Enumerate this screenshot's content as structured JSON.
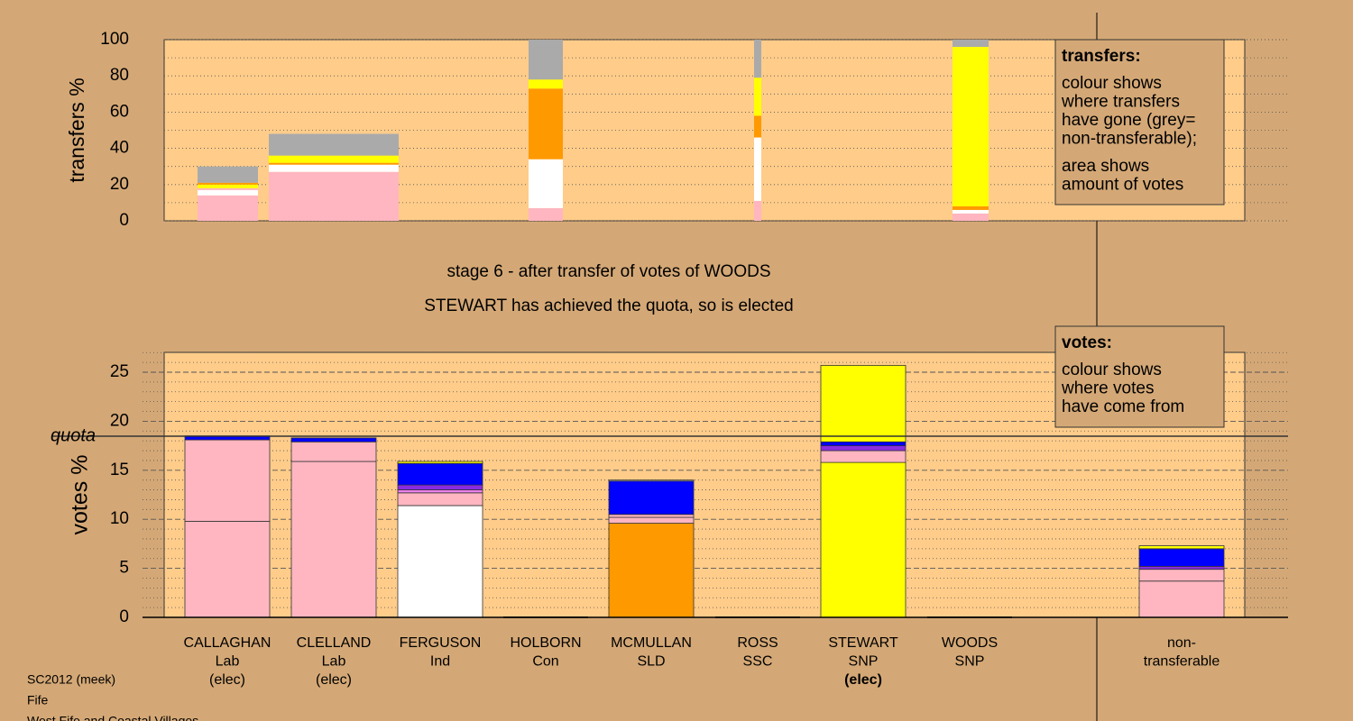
{
  "title": "stage 6 - after transfer of votes of WOODS",
  "subtitle": "STEWART has achieved the quota, so is elected",
  "footer": [
    "SC2012 (meek)",
    "Fife",
    "West Fife and Coastal Villages"
  ],
  "chart_data": [
    {
      "type": "stacked_bar",
      "ylabel": "transfers %",
      "ylim": [
        0,
        100
      ],
      "yticks": [
        0,
        20,
        40,
        60,
        80,
        100
      ],
      "minor_yticks": [
        10,
        30,
        50,
        70,
        90
      ],
      "grid": true,
      "legend": {
        "title": "transfers:",
        "lines": [
          [
            "colour shows",
            "where transfers",
            "have gone (grey=",
            "non-transferable);"
          ],
          [
            "area shows",
            "amount of votes"
          ]
        ]
      },
      "bars": [
        {
          "colors": [
            "#ffb6c1",
            "#ffffff",
            "#ffb6c1",
            "#ffff00",
            "#ff9900",
            "#aaaaaa"
          ],
          "values": [
            14,
            3,
            1,
            2,
            1,
            9
          ]
        },
        {
          "colors": [
            "#ffb6c1",
            "#ffffff",
            "#ff9900",
            "#ffff00",
            "#aaaaaa"
          ],
          "values": [
            27,
            4,
            1,
            4,
            12
          ]
        },
        {
          "colors": [
            "#ffb6c1",
            "#ffffff",
            "#ff9900",
            "#ffff00",
            "#aaaaaa"
          ],
          "values": [
            7,
            27,
            39,
            5,
            22
          ]
        },
        {
          "colors": [
            "#ffb6c1",
            "#ffffff",
            "#ff9900",
            "#ffff00",
            "#aaaaaa"
          ],
          "values": [
            11,
            35,
            12,
            21,
            21
          ]
        },
        {
          "colors": [
            "#ffb6c1",
            "#ffffff",
            "#ff9900",
            "#ffff00",
            "#aaaaaa"
          ],
          "values": [
            4,
            2,
            2,
            88,
            4
          ]
        }
      ]
    },
    {
      "type": "stacked_bar",
      "ylabel": "votes %",
      "ylim": [
        0,
        27
      ],
      "yticks": [
        0,
        5,
        10,
        15,
        20,
        25
      ],
      "minor_yticks": [
        1,
        2,
        3,
        4,
        6,
        7,
        8,
        9,
        11,
        12,
        13,
        14,
        16,
        17,
        18,
        19,
        21,
        22,
        23,
        24,
        26,
        27
      ],
      "grid": true,
      "quota": {
        "value": 18.47,
        "label": "quota"
      },
      "legend": {
        "title": "votes:",
        "lines": [
          [
            "colour shows",
            "where votes",
            "have come from"
          ]
        ]
      },
      "labels": [
        [
          "CALLAGHAN",
          "Lab",
          "(elec)"
        ],
        [
          "CLELLAND",
          "Lab",
          "(elec)"
        ],
        [
          "FERGUSON",
          "Ind"
        ],
        [
          "HOLBORN",
          "Con"
        ],
        [
          "MCMULLAN",
          "SLD"
        ],
        [
          "ROSS",
          "SSC"
        ],
        [
          "STEWART",
          "SNP",
          "(elec)"
        ],
        [
          "WOODS",
          "SNP"
        ],
        [
          "non-",
          "transferable"
        ]
      ],
      "bars": [
        {
          "colors": [
            "#ffb6c1",
            "#ffb6c1",
            "#0000ff"
          ],
          "values": [
            9.8,
            8.3,
            0.4
          ]
        },
        {
          "colors": [
            "#ffb6c1",
            "#ffb6c1",
            "#0000ff"
          ],
          "values": [
            15.9,
            2.0,
            0.4
          ]
        },
        {
          "colors": [
            "#ffffff",
            "#ffb6c1",
            "#ee82ee",
            "#8a2be2",
            "#0000ff",
            "#ffff00"
          ],
          "values": [
            11.4,
            1.3,
            0.3,
            0.5,
            2.2,
            0.2
          ]
        },
        {
          "colors": [
            "#ffb6c1"
          ],
          "values": [
            0
          ]
        },
        {
          "colors": [
            "#ff9900",
            "#ffb6c1",
            "#ffb6c1",
            "#0000ff",
            "#ffffff"
          ],
          "values": [
            9.6,
            0.6,
            0.3,
            3.4,
            0.1
          ]
        },
        {
          "colors": [
            "#ffb6c1"
          ],
          "values": [
            0
          ]
        },
        {
          "colors": [
            "#ffff00",
            "#ffb6c1",
            "#8a2be2",
            "#0000ff",
            "#ffff00"
          ],
          "values": [
            15.8,
            1.2,
            0.5,
            0.4,
            7.8
          ]
        },
        {
          "colors": [
            "#ffb6c1"
          ],
          "values": [
            0
          ]
        },
        {
          "colors": [
            "#ffb6c1",
            "#ffb6c1",
            "#8a2be2",
            "#0000ff",
            "#ffff00"
          ],
          "values": [
            3.7,
            1.2,
            0.3,
            1.8,
            0.3
          ]
        }
      ]
    }
  ]
}
